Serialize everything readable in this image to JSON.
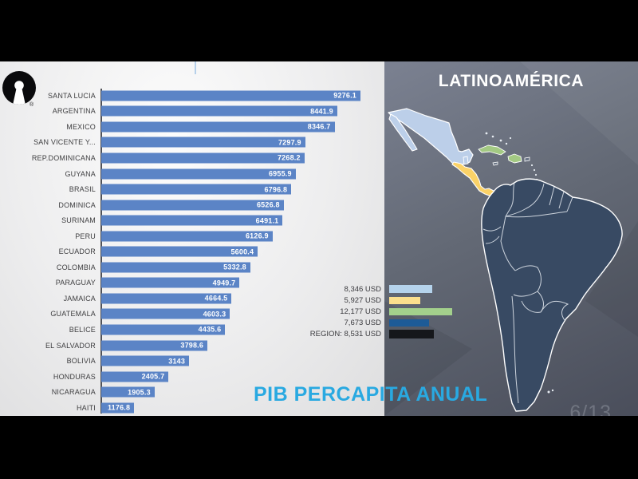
{
  "slide": {
    "map_title": "LATINOAMÉRICA",
    "chart_title": "PIB PERCAPITA ANUAL",
    "page_indicator": "6/13",
    "accent_color": "#29a9e1",
    "logo_trademark": "®"
  },
  "chart_data": {
    "type": "bar",
    "orientation": "horizontal",
    "title": "PIB PERCAPITA ANUAL",
    "value_unit": "USD",
    "xlim": [
      0,
      9500
    ],
    "grid": false,
    "legend_position": "middle-right",
    "bar_color": "#5b84c6",
    "categories": [
      "SANTA LUCIA",
      "ARGENTINA",
      "MEXICO",
      "SAN VICENTE Y...",
      "REP.DOMINICANA",
      "GUYANA",
      "BRASIL",
      "DOMINICA",
      "SURINAM",
      "PERU",
      "ECUADOR",
      "COLOMBIA",
      "PARAGUAY",
      "JAMAICA",
      "GUATEMALA",
      "BELICE",
      "EL SALVADOR",
      "BOLIVIA",
      "HONDURAS",
      "NICARAGUA",
      "HAITI"
    ],
    "values": [
      9276.1,
      8441.9,
      8346.7,
      7297.9,
      7268.2,
      6955.9,
      6796.8,
      6526.8,
      6491.1,
      6126.9,
      5600.4,
      5332.8,
      4949.7,
      4664.5,
      4603.3,
      4435.6,
      3798.6,
      3143,
      2405.7,
      1905.3,
      1176.8
    ]
  },
  "legend": {
    "items": [
      {
        "label": "8,346  USD",
        "value": 8346,
        "color": "#b5d3ec"
      },
      {
        "label": "5,927 USD",
        "value": 5927,
        "color": "#fbdf8d"
      },
      {
        "label": "12,177 USD",
        "value": 12177,
        "color": "#a3d08c"
      },
      {
        "label": "7,673 USD",
        "value": 7673,
        "color": "#1d5b97"
      },
      {
        "label": "REGION: 8,531 USD",
        "value": 8531,
        "color": "#15171b"
      }
    ]
  },
  "map": {
    "region_colors": {
      "light_blue": "#bccfe9",
      "yellow": "#fbd267",
      "green": "#a3c983",
      "dark_blue": "#384a63"
    }
  }
}
